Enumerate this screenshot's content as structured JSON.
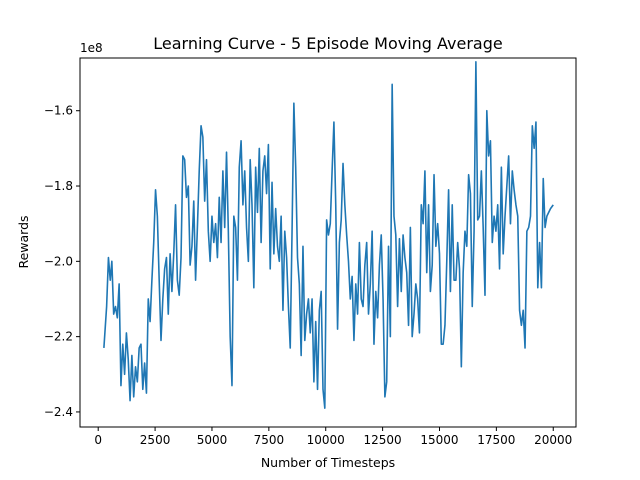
{
  "chart_data": {
    "type": "line",
    "title": "Learning Curve  - 5 Episode Moving Average",
    "xlabel": "Number of Timesteps",
    "ylabel": "Rewards",
    "y_offset_text": "1e8",
    "xlim": [
      -800,
      21000
    ],
    "ylim": [
      -2.44,
      -1.46
    ],
    "xticks": [
      0,
      2500,
      5000,
      7500,
      10000,
      12500,
      15000,
      17500,
      20000
    ],
    "xtick_labels": [
      "0",
      "2500",
      "5000",
      "7500",
      "10000",
      "12500",
      "15000",
      "17500",
      "20000"
    ],
    "yticks": [
      -2.4,
      -2.2,
      -2.0,
      -1.8,
      -1.6
    ],
    "ytick_labels": [
      "−2.4",
      "−2.2",
      "−2.0",
      "−1.8",
      "−1.6"
    ],
    "grid": false,
    "line_color": "#1f77b4",
    "series": [
      {
        "values": [
          [
            250,
            -2.23
          ],
          [
            370,
            -2.12
          ],
          [
            450,
            -1.99
          ],
          [
            530,
            -2.05
          ],
          [
            600,
            -2.0
          ],
          [
            680,
            -2.14
          ],
          [
            760,
            -2.12
          ],
          [
            840,
            -2.15
          ],
          [
            920,
            -2.06
          ],
          [
            1000,
            -2.33
          ],
          [
            1080,
            -2.22
          ],
          [
            1160,
            -2.3
          ],
          [
            1240,
            -2.19
          ],
          [
            1320,
            -2.26
          ],
          [
            1400,
            -2.37
          ],
          [
            1480,
            -2.25
          ],
          [
            1560,
            -2.36
          ],
          [
            1640,
            -2.28
          ],
          [
            1720,
            -2.32
          ],
          [
            1800,
            -2.23
          ],
          [
            1880,
            -2.22
          ],
          [
            1960,
            -2.34
          ],
          [
            2040,
            -2.27
          ],
          [
            2120,
            -2.35
          ],
          [
            2200,
            -2.1
          ],
          [
            2280,
            -2.16
          ],
          [
            2360,
            -2.05
          ],
          [
            2440,
            -1.95
          ],
          [
            2520,
            -1.81
          ],
          [
            2600,
            -1.88
          ],
          [
            2680,
            -2.05
          ],
          [
            2760,
            -2.21
          ],
          [
            2840,
            -2.1
          ],
          [
            2920,
            -2.02
          ],
          [
            3000,
            -1.99
          ],
          [
            3080,
            -2.14
          ],
          [
            3160,
            -1.98
          ],
          [
            3240,
            -2.08
          ],
          [
            3320,
            -1.98
          ],
          [
            3400,
            -1.85
          ],
          [
            3480,
            -2.05
          ],
          [
            3560,
            -2.09
          ],
          [
            3640,
            -1.99
          ],
          [
            3720,
            -1.72
          ],
          [
            3800,
            -1.73
          ],
          [
            3880,
            -1.83
          ],
          [
            3960,
            -1.8
          ],
          [
            4040,
            -2.01
          ],
          [
            4120,
            -1.96
          ],
          [
            4200,
            -1.84
          ],
          [
            4280,
            -2.05
          ],
          [
            4360,
            -1.91
          ],
          [
            4440,
            -1.76
          ],
          [
            4520,
            -1.64
          ],
          [
            4600,
            -1.67
          ],
          [
            4680,
            -1.84
          ],
          [
            4760,
            -1.73
          ],
          [
            4840,
            -1.92
          ],
          [
            4920,
            -2.0
          ],
          [
            5000,
            -1.88
          ],
          [
            5080,
            -1.95
          ],
          [
            5160,
            -1.9
          ],
          [
            5240,
            -1.99
          ],
          [
            5320,
            -1.83
          ],
          [
            5400,
            -1.95
          ],
          [
            5480,
            -1.76
          ],
          [
            5560,
            -1.91
          ],
          [
            5640,
            -1.71
          ],
          [
            5720,
            -1.92
          ],
          [
            5800,
            -2.2
          ],
          [
            5880,
            -2.33
          ],
          [
            5960,
            -1.88
          ],
          [
            6040,
            -1.91
          ],
          [
            6120,
            -2.05
          ],
          [
            6200,
            -1.75
          ],
          [
            6280,
            -1.68
          ],
          [
            6360,
            -1.85
          ],
          [
            6440,
            -1.76
          ],
          [
            6520,
            -1.91
          ],
          [
            6600,
            -2.0
          ],
          [
            6680,
            -1.73
          ],
          [
            6760,
            -1.85
          ],
          [
            6840,
            -2.07
          ],
          [
            6920,
            -1.75
          ],
          [
            7000,
            -1.87
          ],
          [
            7080,
            -1.7
          ],
          [
            7160,
            -1.95
          ],
          [
            7240,
            -1.76
          ],
          [
            7320,
            -1.72
          ],
          [
            7400,
            -1.82
          ],
          [
            7480,
            -1.69
          ],
          [
            7560,
            -2.02
          ],
          [
            7640,
            -1.79
          ],
          [
            7720,
            -1.98
          ],
          [
            7800,
            -1.86
          ],
          [
            7880,
            -1.96
          ],
          [
            7960,
            -2.0
          ],
          [
            8040,
            -1.88
          ],
          [
            8120,
            -2.13
          ],
          [
            8200,
            -1.92
          ],
          [
            8280,
            -1.99
          ],
          [
            8360,
            -2.12
          ],
          [
            8440,
            -2.23
          ],
          [
            8520,
            -1.92
          ],
          [
            8600,
            -1.58
          ],
          [
            8680,
            -1.75
          ],
          [
            8760,
            -1.99
          ],
          [
            8840,
            -2.06
          ],
          [
            8920,
            -2.25
          ],
          [
            9000,
            -1.96
          ],
          [
            9080,
            -2.21
          ],
          [
            9160,
            -2.14
          ],
          [
            9240,
            -2.1
          ],
          [
            9320,
            -2.19
          ],
          [
            9400,
            -2.1
          ],
          [
            9480,
            -2.32
          ],
          [
            9560,
            -2.16
          ],
          [
            9640,
            -2.34
          ],
          [
            9720,
            -2.13
          ],
          [
            9800,
            -2.08
          ],
          [
            9880,
            -2.34
          ],
          [
            9960,
            -2.39
          ],
          [
            10040,
            -1.89
          ],
          [
            10120,
            -1.93
          ],
          [
            10200,
            -1.9
          ],
          [
            10280,
            -1.76
          ],
          [
            10360,
            -1.63
          ],
          [
            10440,
            -1.85
          ],
          [
            10520,
            -2.18
          ],
          [
            10600,
            -1.95
          ],
          [
            10680,
            -1.89
          ],
          [
            10760,
            -1.74
          ],
          [
            10840,
            -1.85
          ],
          [
            10920,
            -1.93
          ],
          [
            11000,
            -2.0
          ],
          [
            11080,
            -2.1
          ],
          [
            11160,
            -2.04
          ],
          [
            11240,
            -2.21
          ],
          [
            11320,
            -2.06
          ],
          [
            11400,
            -2.14
          ],
          [
            11480,
            -1.95
          ],
          [
            11560,
            -2.1
          ],
          [
            11640,
            -2.12
          ],
          [
            11720,
            -2.01
          ],
          [
            11800,
            -1.95
          ],
          [
            11880,
            -2.14
          ],
          [
            11960,
            -2.06
          ],
          [
            12040,
            -1.92
          ],
          [
            12120,
            -2.22
          ],
          [
            12200,
            -2.08
          ],
          [
            12280,
            -2.15
          ],
          [
            12360,
            -2.01
          ],
          [
            12440,
            -1.93
          ],
          [
            12520,
            -2.1
          ],
          [
            12600,
            -2.36
          ],
          [
            12680,
            -2.32
          ],
          [
            12760,
            -1.96
          ],
          [
            12840,
            -2.2
          ],
          [
            12920,
            -1.53
          ],
          [
            13000,
            -1.88
          ],
          [
            13080,
            -1.93
          ],
          [
            13160,
            -2.12
          ],
          [
            13240,
            -1.94
          ],
          [
            13320,
            -2.08
          ],
          [
            13400,
            -1.93
          ],
          [
            13480,
            -1.99
          ],
          [
            13560,
            -2.03
          ],
          [
            13640,
            -2.17
          ],
          [
            13720,
            -1.91
          ],
          [
            13800,
            -2.2
          ],
          [
            13880,
            -2.14
          ],
          [
            13960,
            -2.06
          ],
          [
            14040,
            -2.1
          ],
          [
            14120,
            -2.19
          ],
          [
            14200,
            -1.85
          ],
          [
            14280,
            -1.9
          ],
          [
            14360,
            -1.76
          ],
          [
            14440,
            -2.03
          ],
          [
            14520,
            -1.85
          ],
          [
            14600,
            -2.08
          ],
          [
            14680,
            -2.01
          ],
          [
            14760,
            -1.77
          ],
          [
            14840,
            -1.96
          ],
          [
            14920,
            -1.9
          ],
          [
            15000,
            -1.98
          ],
          [
            15080,
            -2.22
          ],
          [
            15160,
            -2.22
          ],
          [
            15240,
            -2.17
          ],
          [
            15320,
            -2.0
          ],
          [
            15400,
            -1.81
          ],
          [
            15480,
            -2.08
          ],
          [
            15560,
            -1.85
          ],
          [
            15640,
            -2.05
          ],
          [
            15720,
            -2.05
          ],
          [
            15800,
            -1.95
          ],
          [
            15880,
            -2.02
          ],
          [
            15960,
            -2.28
          ],
          [
            16040,
            -2.03
          ],
          [
            16120,
            -1.92
          ],
          [
            16200,
            -1.96
          ],
          [
            16280,
            -1.77
          ],
          [
            16360,
            -1.82
          ],
          [
            16440,
            -2.12
          ],
          [
            16520,
            -1.92
          ],
          [
            16600,
            -1.47
          ],
          [
            16680,
            -1.89
          ],
          [
            16760,
            -1.88
          ],
          [
            16840,
            -1.76
          ],
          [
            16920,
            -1.91
          ],
          [
            17000,
            -2.09
          ],
          [
            17080,
            -1.6
          ],
          [
            17160,
            -1.72
          ],
          [
            17240,
            -1.68
          ],
          [
            17320,
            -1.95
          ],
          [
            17400,
            -1.88
          ],
          [
            17480,
            -1.92
          ],
          [
            17560,
            -1.85
          ],
          [
            17640,
            -2.02
          ],
          [
            17720,
            -1.75
          ],
          [
            17800,
            -1.98
          ],
          [
            17880,
            -1.88
          ],
          [
            17960,
            -1.8
          ],
          [
            18040,
            -1.72
          ],
          [
            18120,
            -1.9
          ],
          [
            18200,
            -1.76
          ],
          [
            18280,
            -1.81
          ],
          [
            18360,
            -1.85
          ],
          [
            18440,
            -1.88
          ],
          [
            18520,
            -2.13
          ],
          [
            18600,
            -2.17
          ],
          [
            18680,
            -2.13
          ],
          [
            18760,
            -2.23
          ],
          [
            18840,
            -1.92
          ],
          [
            18920,
            -1.91
          ],
          [
            19000,
            -1.88
          ],
          [
            19080,
            -1.64
          ],
          [
            19160,
            -1.7
          ],
          [
            19240,
            -1.63
          ],
          [
            19320,
            -2.07
          ],
          [
            19400,
            -1.95
          ],
          [
            19480,
            -2.07
          ],
          [
            19560,
            -1.78
          ],
          [
            19640,
            -1.91
          ],
          [
            19720,
            -1.88
          ],
          [
            19800,
            -1.87
          ],
          [
            19880,
            -1.86
          ],
          [
            20000,
            -1.85
          ]
        ]
      }
    ]
  }
}
